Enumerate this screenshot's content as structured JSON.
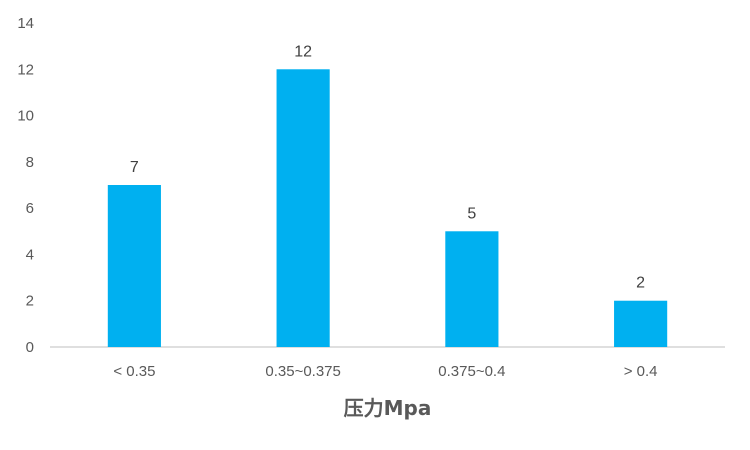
{
  "chart_data": {
    "type": "bar",
    "categories": [
      "< 0.35",
      "0.35~0.375",
      "0.375~0.4",
      "> 0.4"
    ],
    "values": [
      7,
      12,
      5,
      2
    ],
    "xlabel": "压力Mpa",
    "ylabel": "",
    "ylim": [
      0,
      14
    ],
    "yticks": [
      0,
      2,
      4,
      6,
      8,
      10,
      12,
      14
    ],
    "grid": false,
    "data_labels": true,
    "colors": {
      "bar": "#00B0F0",
      "axis": "#BFBFBF"
    }
  }
}
